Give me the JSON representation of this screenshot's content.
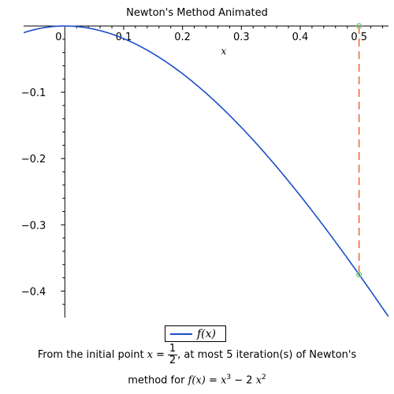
{
  "chart_data": {
    "type": "line",
    "title": "Newton's Method Animated",
    "xlabel": "x",
    "ylabel": "",
    "xlim": [
      -0.07,
      0.55
    ],
    "ylim": [
      -0.44,
      0.0
    ],
    "x_ticks": [
      "0",
      "0.1",
      "0.2",
      "0.3",
      "0.4",
      "0.5"
    ],
    "y_ticks": [
      "-0.1",
      "-0.2",
      "-0.3",
      "-0.4"
    ],
    "series": [
      {
        "name": "f(x)",
        "function": "x^3 - 2 x^2",
        "color": "#1a4fc9"
      }
    ],
    "newton_lines": [
      {
        "x": 0.5,
        "y_from": 0.0,
        "y_to": -0.375,
        "color": "#f26b3a",
        "style": "dashed"
      }
    ],
    "points": [
      {
        "x": 0.5,
        "y": 0.0,
        "color": "#7fd07f"
      },
      {
        "x": 0.5,
        "y": -0.375,
        "color": "#7fd07f"
      }
    ],
    "legend": {
      "placement": "bottom",
      "label": "f(x)"
    }
  },
  "caption": {
    "line1_prefix": "From the initial point",
    "x_var": "x",
    "equals": "=",
    "frac_num": "1",
    "frac_den": "2",
    "line1_suffix": ", at most 5 iteration(s) of Newton's",
    "line2_prefix": "method for",
    "fx": "f(x)",
    "equals2": "=",
    "rhs_x1": "x",
    "exp1": "3",
    "rhs_mid": " − 2 ",
    "rhs_x2": "x",
    "exp2": "2"
  }
}
